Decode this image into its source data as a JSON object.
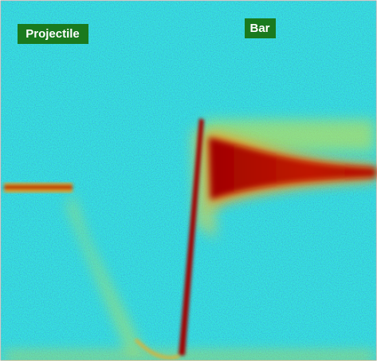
{
  "labels": {
    "left": "Projectile",
    "right": "Bar"
  }
}
